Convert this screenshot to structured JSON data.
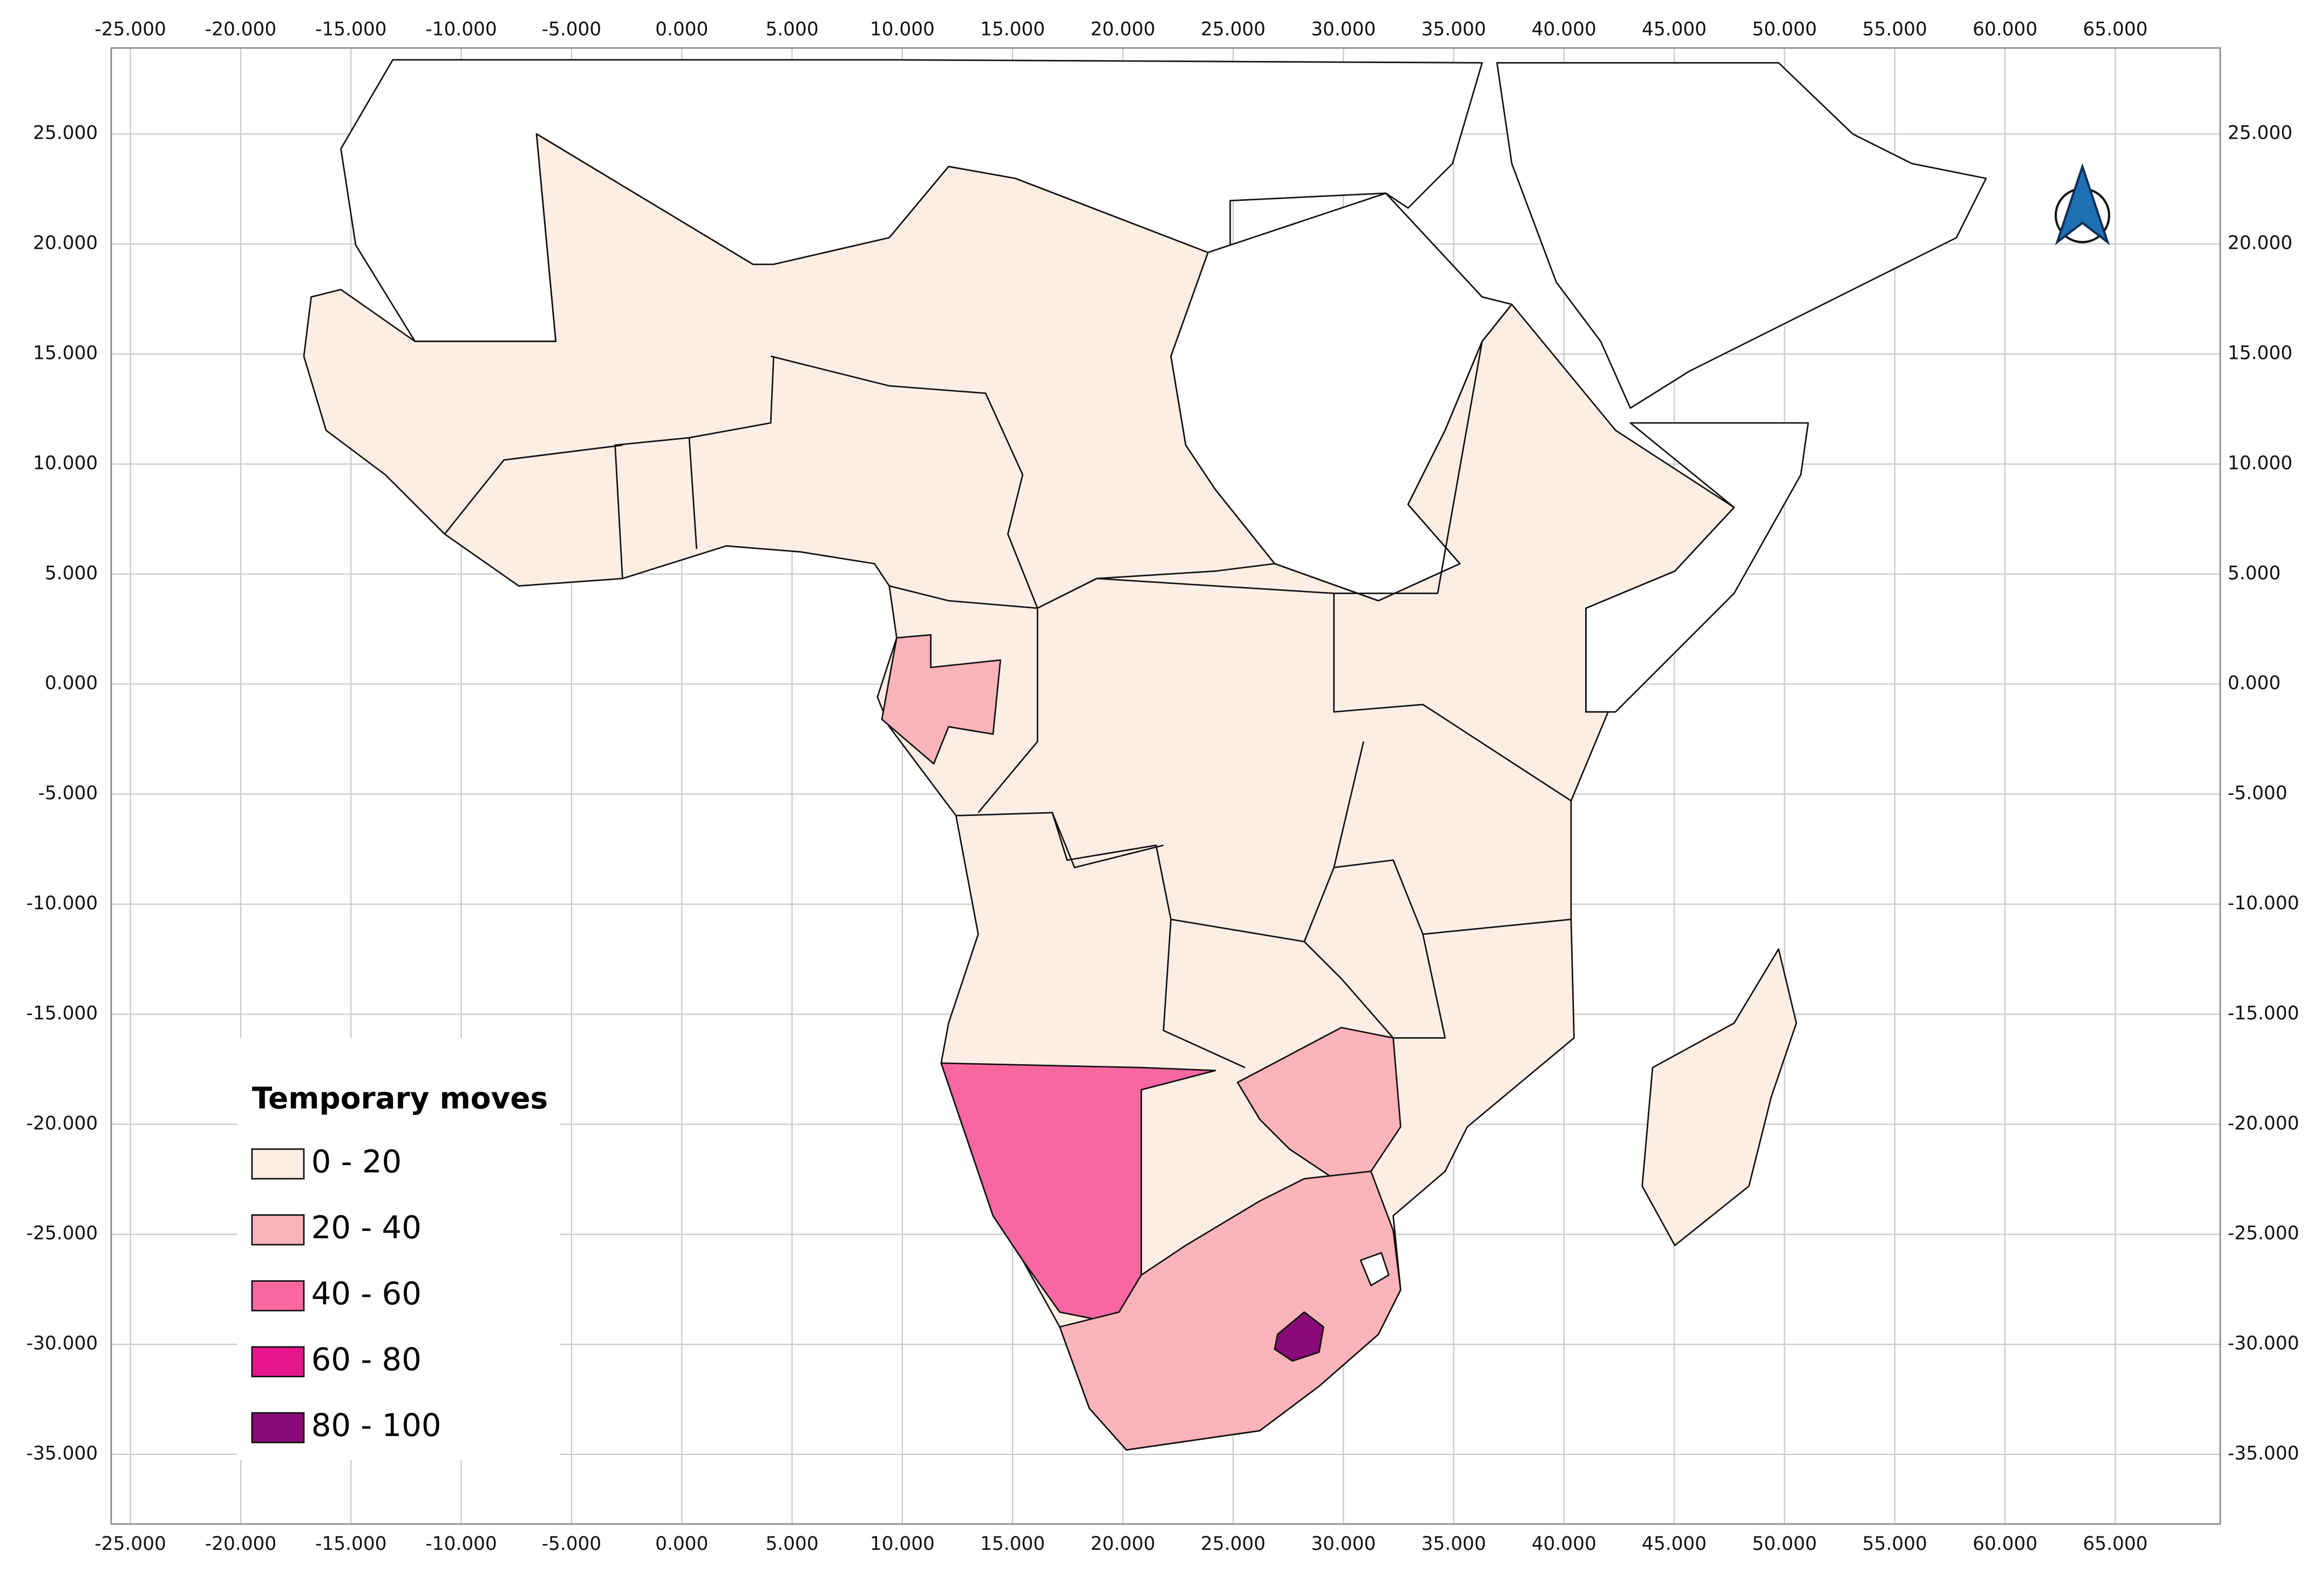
{
  "axes": {
    "x_ticks": [
      {
        "value": -25,
        "label": "-25.000"
      },
      {
        "value": -20,
        "label": "-20.000"
      },
      {
        "value": -15,
        "label": "-15.000"
      },
      {
        "value": -10,
        "label": "-10.000"
      },
      {
        "value": -5,
        "label": "-5.000"
      },
      {
        "value": 0,
        "label": "0.000"
      },
      {
        "value": 5,
        "label": "5.000"
      },
      {
        "value": 10,
        "label": "10.000"
      },
      {
        "value": 15,
        "label": "15.000"
      },
      {
        "value": 20,
        "label": "20.000"
      },
      {
        "value": 25,
        "label": "25.000"
      },
      {
        "value": 30,
        "label": "30.000"
      },
      {
        "value": 35,
        "label": "35.000"
      },
      {
        "value": 40,
        "label": "40.000"
      },
      {
        "value": 45,
        "label": "45.000"
      },
      {
        "value": 50,
        "label": "50.000"
      },
      {
        "value": 55,
        "label": "55.000"
      },
      {
        "value": 60,
        "label": "60.000"
      },
      {
        "value": 65,
        "label": "65.000"
      }
    ],
    "y_ticks": [
      {
        "value": 25,
        "label": "25.000"
      },
      {
        "value": 20,
        "label": "20.000"
      },
      {
        "value": 15,
        "label": "15.000"
      },
      {
        "value": 10,
        "label": "10.000"
      },
      {
        "value": 5,
        "label": "5.000"
      },
      {
        "value": 0,
        "label": "0.000"
      },
      {
        "value": -5,
        "label": "-5.000"
      },
      {
        "value": -10,
        "label": "-10.000"
      },
      {
        "value": -15,
        "label": "-15.000"
      },
      {
        "value": -20,
        "label": "-20.000"
      },
      {
        "value": -25,
        "label": "-25.000"
      },
      {
        "value": -30,
        "label": "-30.000"
      },
      {
        "value": -35,
        "label": "-35.000"
      }
    ]
  },
  "legend": {
    "title": "Temporary moves",
    "classes": [
      {
        "label": "0 - 20",
        "color": "#fdeee5"
      },
      {
        "label": "20 - 40",
        "color": "#fbb4b9"
      },
      {
        "label": "40 - 60",
        "color": "#f768a1"
      },
      {
        "label": "60 - 80",
        "color": "#e7158c"
      },
      {
        "label": "80 - 100",
        "color": "#8a0a78"
      }
    ]
  }
}
